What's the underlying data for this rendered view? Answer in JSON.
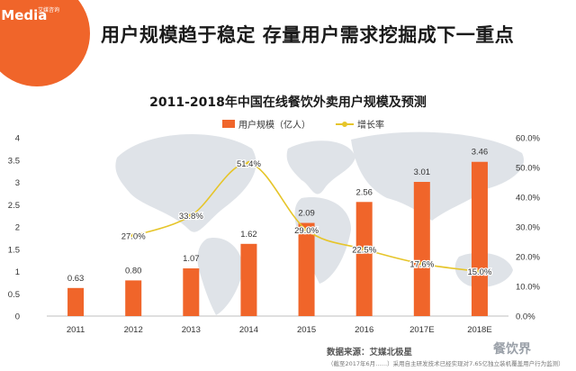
{
  "brand": {
    "logo_text": "iiMedia",
    "logo_sub": "艾媒咨询",
    "accent": "#f0652a"
  },
  "header": {
    "headline": "用户规模趋于稳定 存量用户需求挖掘成下一重点"
  },
  "chart_data": {
    "type": "bar",
    "title": "2011-2018年中国在线餐饮外卖用户规模及预测",
    "categories": [
      "2011",
      "2012",
      "2013",
      "2014",
      "2015",
      "2016",
      "2017E",
      "2018E"
    ],
    "series": [
      {
        "name": "用户规模（亿人）",
        "type": "bar",
        "axis": "left",
        "values": [
          0.63,
          0.8,
          1.07,
          1.62,
          2.09,
          2.56,
          3.01,
          3.46
        ],
        "labels": [
          "0.63",
          "0.80",
          "1.07",
          "1.62",
          "2.09",
          "2.56",
          "3.01",
          "3.46"
        ],
        "color": "#f0652a"
      },
      {
        "name": "增长率",
        "type": "line",
        "axis": "right",
        "values": [
          null,
          27.0,
          33.8,
          51.4,
          29.0,
          22.5,
          17.6,
          15.0
        ],
        "labels": [
          "",
          "27.0%",
          "33.8%",
          "51.4%",
          "29.0%",
          "22.5%",
          "17.6%",
          "15.0%"
        ],
        "color": "#e6c52a"
      }
    ],
    "y_left": {
      "min": 0,
      "max": 4,
      "ticks": [
        "0",
        "0.5",
        "1",
        "1.5",
        "2",
        "2.5",
        "3",
        "3.5",
        "4"
      ]
    },
    "y_right": {
      "min": 0,
      "max": 60,
      "ticks": [
        "0.0%",
        "10.0%",
        "20.0%",
        "30.0%",
        "40.0%",
        "50.0%",
        "60.0%"
      ]
    },
    "legend_position": "top-center",
    "grid": false
  },
  "source": {
    "label": "数据来源：艾媒北极星",
    "note": "（截至2017年6月……）采用自主研发技术已经实现对7.65亿独立装机覆盖用户行为监测）"
  },
  "watermark": "餐饮界"
}
